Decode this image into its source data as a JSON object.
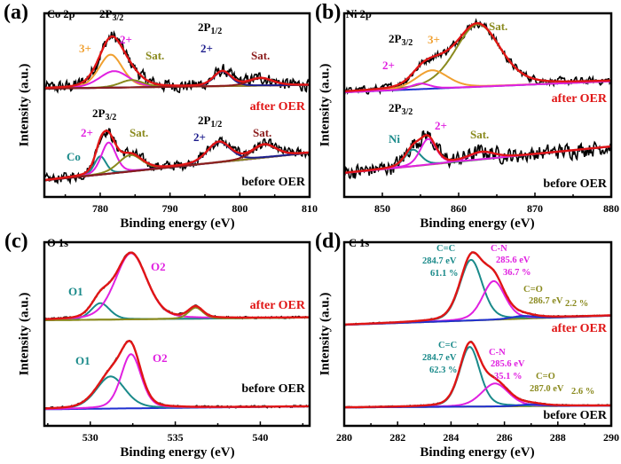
{
  "colors": {
    "raw": "#000000",
    "envelope": "#e01515",
    "orange": "#f0a030",
    "magenta": "#e020e0",
    "olive": "#8a8a1e",
    "navy": "#1c1c8c",
    "darkred": "#8b1c1c",
    "teal": "#1a8a8a",
    "blue": "#2030d0"
  },
  "chart_data": [
    {
      "type": "line",
      "panel": "(a)",
      "title": "Co 2p",
      "xlabel": "Binding energy (eV)",
      "ylabel": "Intensity (a.u.)",
      "xlim": [
        772,
        810
      ],
      "ylim": [
        0,
        100
      ],
      "xticks": [
        780,
        790,
        800,
        810
      ],
      "grid": false,
      "series": [
        {
          "name": "after OER",
          "baseline": [
            59,
            61
          ],
          "baseline_color": "darkred",
          "noise": 5,
          "peaks": [
            {
              "label": "3+",
              "center": 781.5,
              "height": 18,
              "fwhm": 4,
              "color": "orange"
            },
            {
              "label": "2+",
              "center": 782,
              "height": 9,
              "fwhm": 5,
              "color": "magenta"
            },
            {
              "label": "Sat.",
              "center": 784.5,
              "height": 4,
              "fwhm": 4,
              "color": "olive"
            },
            {
              "label": "2+",
              "center": 797.5,
              "height": 8,
              "fwhm": 3,
              "color": "navy"
            },
            {
              "label": "Sat.",
              "center": 803,
              "height": 4,
              "fwhm": 4,
              "color": "darkred"
            }
          ]
        },
        {
          "name": "before OER",
          "baseline": [
            9,
            24
          ],
          "baseline_color": "darkred",
          "noise": 4,
          "peaks": [
            {
              "label": "Co",
              "center": 780,
              "height": 10,
              "fwhm": 2,
              "color": "teal"
            },
            {
              "label": "2+",
              "center": 781.2,
              "height": 17,
              "fwhm": 2.5,
              "color": "magenta"
            },
            {
              "label": "Sat.",
              "center": 784.3,
              "height": 9,
              "fwhm": 4,
              "color": "olive"
            },
            {
              "label": "2+",
              "center": 797,
              "height": 11,
              "fwhm": 4,
              "color": "navy"
            },
            {
              "label": "Sat.",
              "center": 803.5,
              "height": 7,
              "fwhm": 4,
              "color": "darkred"
            }
          ]
        }
      ]
    },
    {
      "type": "line",
      "panel": "(b)",
      "title": "Ni 2p",
      "xlabel": "Binding energy (eV)",
      "ylabel": "Intensity (a.u.)",
      "xlim": [
        845,
        880
      ],
      "ylim": [
        0,
        100
      ],
      "xticks": [
        850,
        860,
        870,
        880
      ],
      "grid": false,
      "series": [
        {
          "name": "after OER",
          "baseline": [
            57,
            63
          ],
          "baseline_color": "blue",
          "noise": 3,
          "peaks": [
            {
              "label": "Sat.",
              "center": 862.5,
              "height": 34,
              "fwhm": 7,
              "color": "olive"
            },
            {
              "label": "3+",
              "center": 856.5,
              "height": 10,
              "fwhm": 5,
              "color": "orange"
            },
            {
              "label": "2+",
              "center": 855,
              "height": 3,
              "fwhm": 3,
              "color": "magenta"
            }
          ]
        },
        {
          "name": "before OER",
          "baseline": [
            13,
            27.5
          ],
          "baseline_color": "olive",
          "noise": 6,
          "peaks": [
            {
              "label": "Ni",
              "center": 854,
              "height": 9,
              "fwhm": 2.5,
              "color": "teal"
            },
            {
              "label": "2+",
              "center": 856,
              "height": 14,
              "fwhm": 2.5,
              "color": "magenta"
            },
            {
              "label": "Sat.",
              "center": 863,
              "height": 4,
              "fwhm": 4,
              "color": "magenta"
            }
          ]
        }
      ]
    },
    {
      "type": "line",
      "panel": "(c)",
      "title": "O 1s",
      "xlabel": "Binding energy (eV)",
      "ylabel": "Intensity (a.u.)",
      "xlim": [
        527.3,
        542.9
      ],
      "ylim": [
        0,
        100
      ],
      "xticks": [
        530,
        535,
        540
      ],
      "grid": false,
      "series": [
        {
          "name": "after OER",
          "baseline": [
            57.5,
            59
          ],
          "baseline_color": "olive",
          "noise": 0.8,
          "peaks": [
            {
              "label": "O1",
              "center": 530.6,
              "height": 9,
              "fwhm": 1.3,
              "color": "teal"
            },
            {
              "label": "O2",
              "center": 532.4,
              "height": 36,
              "fwhm": 2.2,
              "color": "magenta"
            },
            {
              "label": "",
              "center": 536.2,
              "height": 6,
              "fwhm": 1,
              "color": "olive"
            }
          ]
        },
        {
          "name": "before OER",
          "baseline": [
            9,
            10.6
          ],
          "baseline_color": "blue",
          "noise": 0.8,
          "peaks": [
            {
              "label": "O1",
              "center": 531.2,
              "height": 17.5,
              "fwhm": 2,
              "color": "teal"
            },
            {
              "label": "O2",
              "center": 532.4,
              "height": 29.5,
              "fwhm": 1.4,
              "color": "magenta"
            }
          ]
        }
      ]
    },
    {
      "type": "line",
      "panel": "(d)",
      "title": "C 1s",
      "xlabel": "Binding energy (eV)",
      "ylabel": "Intensity (a.u.)",
      "xlim": [
        280,
        290
      ],
      "ylim": [
        0,
        100
      ],
      "xticks": [
        280,
        282,
        284,
        286,
        288,
        290
      ],
      "grid": false,
      "series": [
        {
          "name": "after OER",
          "baseline": [
            55,
            60
          ],
          "baseline_color": "olive",
          "noise": 0.5,
          "peaks": [
            {
              "label": "C=C",
              "center": 284.75,
              "height": 33,
              "fwhm": 1,
              "color": "teal",
              "position": "284.7 eV",
              "percent": "61.1 %"
            },
            {
              "label": "C-N",
              "center": 285.6,
              "height": 21,
              "fwhm": 1,
              "color": "magenta",
              "position": "285.6 eV",
              "percent": "36.7 %"
            },
            {
              "label": "C=O",
              "center": 286.7,
              "height": 1.5,
              "fwhm": 1,
              "color": "blue",
              "position": "286.7 eV",
              "percent": "2.2 %"
            }
          ]
        },
        {
          "name": "before OER",
          "baseline": [
            10,
            11
          ],
          "baseline_color": "olive",
          "noise": 0.5,
          "peaks": [
            {
              "label": "C=C",
              "center": 284.7,
              "height": 32.5,
              "fwhm": 0.9,
              "color": "teal",
              "position": "284.7 eV",
              "percent": "62.3 %"
            },
            {
              "label": "C-N",
              "center": 285.65,
              "height": 12.5,
              "fwhm": 1.2,
              "color": "magenta",
              "position": "285.6 eV",
              "percent": "35.1 %"
            },
            {
              "label": "C=O",
              "center": 287.0,
              "height": 1,
              "fwhm": 1,
              "color": "blue",
              "position": "287.0 eV",
              "percent": "2.6 %"
            }
          ]
        }
      ]
    }
  ],
  "panels": [
    {
      "tag": "(a)",
      "title": "Co 2p",
      "ann": [
        {
          "t": "2P",
          "s": "3/2"
        },
        {
          "t": "3+"
        },
        {
          "t": "2+"
        },
        {
          "t": "Sat."
        },
        {
          "t": "2P",
          "s": "1/2"
        },
        {
          "t": "2+"
        },
        {
          "t": "Sat."
        },
        {
          "t": "after OER"
        },
        {
          "t": "2P",
          "s": "3/2"
        },
        {
          "t": "2+"
        },
        {
          "t": "Sat."
        },
        {
          "t": "Co"
        },
        {
          "t": "2P",
          "s": "1/2"
        },
        {
          "t": "2+"
        },
        {
          "t": "Sat."
        },
        {
          "t": "before OER"
        }
      ]
    },
    {
      "tag": "(b)",
      "title": "Ni 2p",
      "ann": [
        {
          "t": "2P",
          "s": "3/2"
        },
        {
          "t": "3+"
        },
        {
          "t": "Sat."
        },
        {
          "t": "2+"
        },
        {
          "t": "after OER"
        },
        {
          "t": "2P",
          "s": "3/2"
        },
        {
          "t": "2+"
        },
        {
          "t": "Ni"
        },
        {
          "t": "Sat."
        },
        {
          "t": "before OER"
        }
      ]
    },
    {
      "tag": "(c)",
      "title": "O 1s",
      "ann": [
        {
          "t": "O1"
        },
        {
          "t": "O2"
        },
        {
          "t": "after OER"
        },
        {
          "t": "O1"
        },
        {
          "t": "O2"
        },
        {
          "t": "before OER"
        }
      ]
    },
    {
      "tag": "(d)",
      "title": "C 1s",
      "ann": [
        {
          "t": "after OER"
        },
        {
          "t": "before OER"
        }
      ]
    }
  ],
  "axis": {
    "xlabel": "Binding energy (eV)",
    "ylabel": "Intensity (a.u.)"
  }
}
